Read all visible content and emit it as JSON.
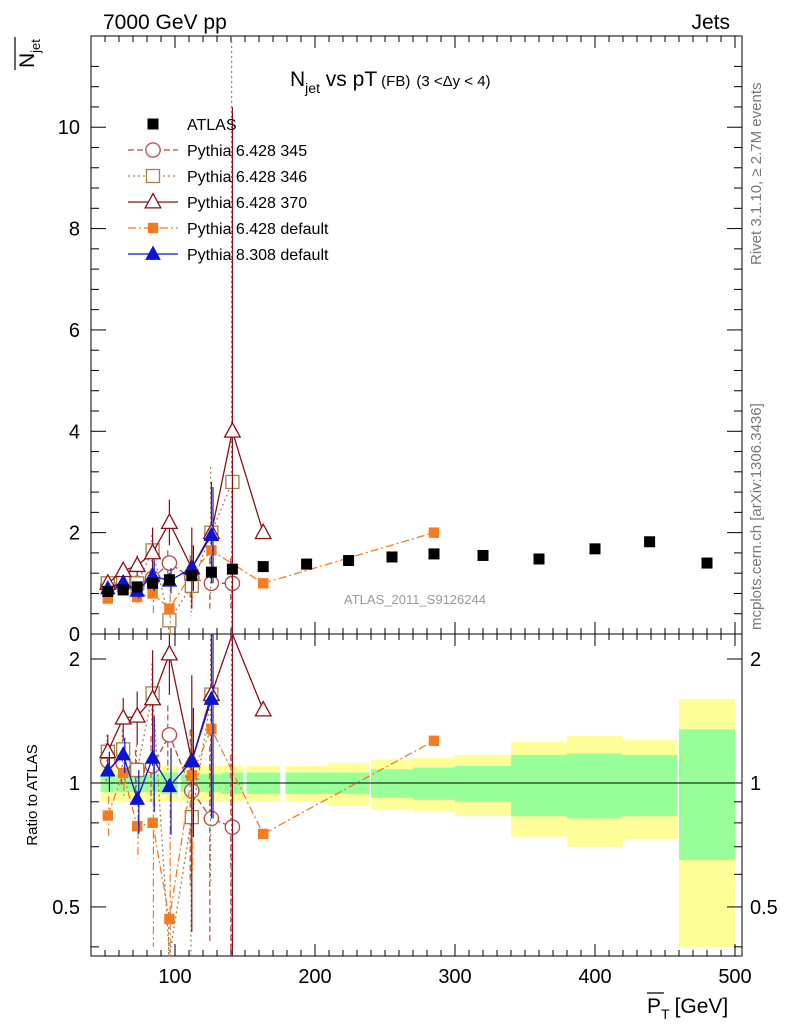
{
  "header": {
    "left": "7000 GeV pp",
    "right": "Jets"
  },
  "side_labels": {
    "rivet": "Rivet 3.1.10, ≥ 2.7M events",
    "mcplots": "mcplots.cern.ch [arXiv:1306.3436]"
  },
  "watermark": "ATLAS_2011_S9126244",
  "chart_data": {
    "type": "line",
    "title": {
      "main": "N",
      "main_sub": "jet",
      "vs": " vs pT",
      "fb": "(FB)",
      "range": "(3 <Δy < 4)"
    },
    "xlabel": "[GeV]",
    "xlabel_symbol": "P",
    "xlabel_sub": "T",
    "ylabel_symbol": "N",
    "ylabel_sub": "jet",
    "ratio_ylabel": "Ratio to ATLAS",
    "xlim": [
      40,
      505
    ],
    "ylim_main": [
      0,
      11.8
    ],
    "ylim_ratio": [
      0.38,
      2.3
    ],
    "ratio_log": true,
    "x_ticks": [
      100,
      200,
      300,
      400,
      500
    ],
    "y_ticks_main": [
      0,
      2,
      4,
      6,
      8,
      10
    ],
    "y_ticks_ratio": [
      0.5,
      1,
      2
    ],
    "legend_position": "top-left",
    "atlas": {
      "name": "ATLAS",
      "color": "#000000",
      "x": [
        52,
        63,
        73,
        84,
        96,
        112,
        126,
        141,
        163,
        194,
        224,
        255,
        285,
        320,
        360,
        400,
        439,
        480
      ],
      "xerr": [
        5,
        5,
        5,
        6,
        6,
        8,
        8,
        8,
        12,
        15,
        15,
        15,
        15,
        20,
        20,
        20,
        20,
        20
      ],
      "y": [
        0.84,
        0.87,
        0.93,
        1.0,
        1.07,
        1.15,
        1.22,
        1.28,
        1.33,
        1.38,
        1.45,
        1.52,
        1.58,
        1.55,
        1.48,
        1.68,
        1.82,
        1.4
      ],
      "band_stat": [
        0.05,
        0.05,
        0.05,
        0.05,
        0.06,
        0.05,
        0.05,
        0.06,
        0.06,
        0.06,
        0.06,
        0.08,
        0.09,
        0.1,
        0.17,
        0.18,
        0.17,
        0.35
      ],
      "band_tot": [
        0.1,
        0.1,
        0.1,
        0.1,
        0.1,
        0.1,
        0.1,
        0.1,
        0.1,
        0.1,
        0.12,
        0.14,
        0.15,
        0.17,
        0.26,
        0.3,
        0.27,
        0.6
      ]
    },
    "series": [
      {
        "name": "Pythia 6.428 345",
        "color": "#b8474a",
        "dash": "6,3",
        "marker": "circle-open",
        "x": [
          52,
          63,
          73,
          84,
          96,
          112,
          126,
          141
        ],
        "y": [
          0.95,
          0.97,
          1.0,
          1.1,
          1.4,
          1.1,
          1.0,
          1.0
        ],
        "err": [
          0.1,
          0.12,
          0.12,
          0.2,
          0.25,
          0.45,
          0.5,
          0.5
        ]
      },
      {
        "name": "Pythia 6.428 346",
        "color": "#a27f4a",
        "dash": "2,3",
        "marker": "square-open",
        "x": [
          52,
          63,
          73,
          84,
          96,
          112,
          126,
          141
        ],
        "y": [
          1.0,
          1.05,
          1.0,
          1.65,
          0.27,
          0.95,
          2.0,
          3.0
        ],
        "err": [
          0.1,
          0.12,
          0.15,
          0.3,
          0.25,
          0.6,
          1.3,
          9.0
        ]
      },
      {
        "name": "Pythia 6.428 370",
        "color": "#8b0e16",
        "dash": "",
        "marker": "triangle-open",
        "x": [
          52,
          63,
          73,
          84,
          96,
          112,
          126,
          141,
          163
        ],
        "y": [
          1.0,
          1.25,
          1.35,
          1.6,
          2.2,
          1.3,
          2.0,
          4.0,
          2.0
        ],
        "err": [
          0.1,
          0.15,
          0.2,
          0.5,
          0.45,
          0.8,
          1.0,
          6.4,
          0
        ]
      },
      {
        "name": "Pythia 6.428 default",
        "color": "#f47b20",
        "dash": "8,3,2,3",
        "marker": "square-filled",
        "x": [
          52,
          63,
          73,
          84,
          96,
          112,
          126,
          163,
          285
        ],
        "y": [
          0.7,
          0.92,
          0.73,
          0.8,
          0.5,
          1.2,
          1.65,
          1.0,
          2.0
        ],
        "err": [
          0.08,
          0.12,
          0.12,
          0.4,
          0.6,
          0.5,
          0.0,
          0.0,
          0.0
        ]
      },
      {
        "name": "Pythia 8.308 default",
        "color": "#0a14d4",
        "dash": "",
        "marker": "triangle-filled",
        "x": [
          52,
          63,
          73,
          84,
          96,
          112,
          126
        ],
        "y": [
          0.9,
          1.02,
          0.85,
          1.15,
          1.05,
          1.3,
          1.95
        ],
        "err": [
          0.1,
          0.1,
          0.15,
          0.3,
          0.25,
          0.45,
          0.95
        ]
      }
    ]
  }
}
